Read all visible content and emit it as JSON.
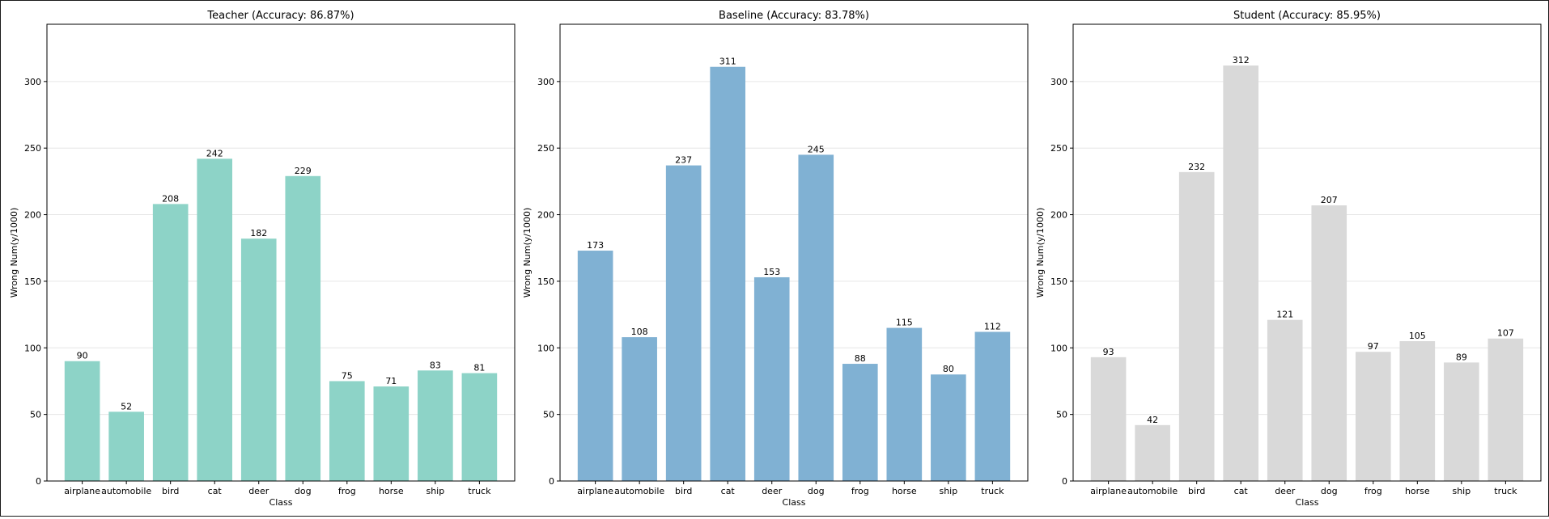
{
  "chart_data": [
    {
      "type": "bar",
      "title": "Teacher (Accuracy: 86.87%)",
      "xlabel": "Class",
      "ylabel": "Wrong Num(y/1000)",
      "categories": [
        "airplane",
        "automobile",
        "bird",
        "cat",
        "deer",
        "dog",
        "frog",
        "horse",
        "ship",
        "truck"
      ],
      "values": [
        90,
        52,
        208,
        242,
        182,
        229,
        75,
        71,
        83,
        81
      ],
      "color": "#8dd3c7",
      "ylim": [
        0,
        343
      ],
      "yticks": [
        0,
        50,
        100,
        150,
        200,
        250,
        300
      ],
      "grid": "y"
    },
    {
      "type": "bar",
      "title": "Baseline (Accuracy: 83.78%)",
      "xlabel": "Class",
      "ylabel": "Wrong Num(y/1000)",
      "categories": [
        "airplane",
        "automobile",
        "bird",
        "cat",
        "deer",
        "dog",
        "frog",
        "horse",
        "ship",
        "truck"
      ],
      "values": [
        173,
        108,
        237,
        311,
        153,
        245,
        88,
        115,
        80,
        112
      ],
      "color": "#80b1d3",
      "ylim": [
        0,
        343
      ],
      "yticks": [
        0,
        50,
        100,
        150,
        200,
        250,
        300
      ],
      "grid": "y"
    },
    {
      "type": "bar",
      "title": "Student (Accuracy: 85.95%)",
      "xlabel": "Class",
      "ylabel": "Wrong Num(y/1000)",
      "categories": [
        "airplane",
        "automobile",
        "bird",
        "cat",
        "deer",
        "dog",
        "frog",
        "horse",
        "ship",
        "truck"
      ],
      "values": [
        93,
        42,
        232,
        312,
        121,
        207,
        97,
        105,
        89,
        107
      ],
      "color": "#d9d9d9",
      "ylim": [
        0,
        343
      ],
      "yticks": [
        0,
        50,
        100,
        150,
        200,
        250,
        300
      ],
      "grid": "y"
    }
  ]
}
